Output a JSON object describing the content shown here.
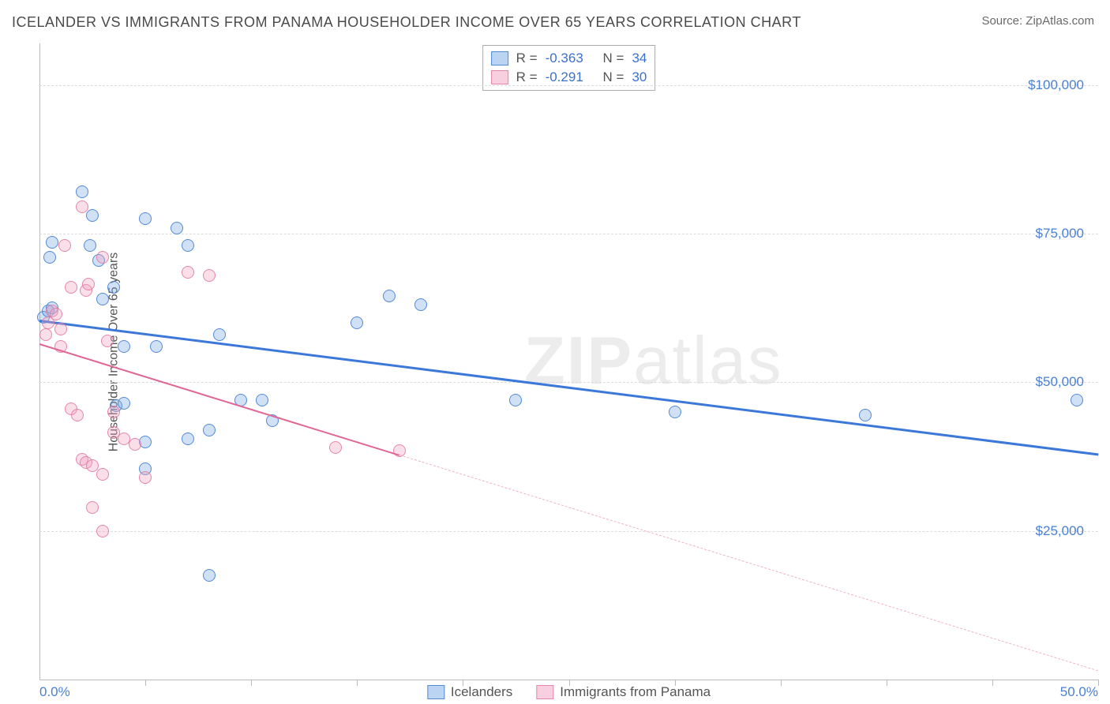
{
  "title": "ICELANDER VS IMMIGRANTS FROM PANAMA HOUSEHOLDER INCOME OVER 65 YEARS CORRELATION CHART",
  "source": "Source: ZipAtlas.com",
  "watermark": {
    "prefix": "ZIP",
    "suffix": "atlas"
  },
  "y_axis_title": "Householder Income Over 65 years",
  "chart": {
    "type": "scatter",
    "xlim": [
      0,
      50
    ],
    "ylim": [
      0,
      107000
    ],
    "x_min_label": "0.0%",
    "x_max_label": "50.0%",
    "x_tick_step": 5,
    "y_gridlines": [
      {
        "value": 25000,
        "label": "$25,000"
      },
      {
        "value": 50000,
        "label": "$50,000"
      },
      {
        "value": 75000,
        "label": "$75,000"
      },
      {
        "value": 100000,
        "label": "$100,000"
      }
    ],
    "background_color": "#ffffff",
    "grid_color": "#dcdcdc",
    "axis_color": "#bbbbbb",
    "text_color": "#555555",
    "value_color": "#4a7fd6",
    "marker_radius": 8,
    "series": [
      {
        "key": "icelanders",
        "name": "Icelanders",
        "color_fill": "rgba(120,170,230,0.35)",
        "color_stroke": "rgba(70,130,210,0.9)",
        "trend_color": "#3b78d8",
        "r_value": "-0.363",
        "n_value": "34",
        "trend": {
          "x1": 0,
          "y1": 60500,
          "x2": 50,
          "y2": 38000,
          "solid_until_x": 50
        },
        "points": [
          [
            0.2,
            61000
          ],
          [
            0.4,
            62000
          ],
          [
            0.6,
            62500
          ],
          [
            0.5,
            71000
          ],
          [
            0.6,
            73500
          ],
          [
            2.0,
            82000
          ],
          [
            2.4,
            73000
          ],
          [
            2.5,
            78000
          ],
          [
            3.0,
            64000
          ],
          [
            3.5,
            66000
          ],
          [
            3.6,
            46000
          ],
          [
            4.0,
            56000
          ],
          [
            5.0,
            77500
          ],
          [
            6.5,
            76000
          ],
          [
            7.0,
            73000
          ],
          [
            5.5,
            56000
          ],
          [
            5.0,
            40000
          ],
          [
            5.0,
            35500
          ],
          [
            7.0,
            40500
          ],
          [
            8.0,
            42000
          ],
          [
            8.5,
            58000
          ],
          [
            9.5,
            47000
          ],
          [
            10.5,
            47000
          ],
          [
            11.0,
            43500
          ],
          [
            8.0,
            17500
          ],
          [
            15.0,
            60000
          ],
          [
            16.5,
            64500
          ],
          [
            18.0,
            63000
          ],
          [
            22.5,
            47000
          ],
          [
            30.0,
            45000
          ],
          [
            39.0,
            44500
          ],
          [
            49.0,
            47000
          ],
          [
            2.8,
            70500
          ],
          [
            4.0,
            46500
          ]
        ]
      },
      {
        "key": "panama",
        "name": "Immigrants from Panama",
        "color_fill": "rgba(240,160,190,0.35)",
        "color_stroke": "rgba(225,120,160,0.85)",
        "trend_color": "#e06694",
        "trend_dash_color": "#f0b3c8",
        "r_value": "-0.291",
        "n_value": "30",
        "trend": {
          "x1": 0,
          "y1": 56500,
          "x2": 50,
          "y2": 1500,
          "solid_until_x": 17
        },
        "points": [
          [
            0.3,
            58000
          ],
          [
            0.4,
            60000
          ],
          [
            0.6,
            62000
          ],
          [
            0.8,
            61500
          ],
          [
            1.0,
            59000
          ],
          [
            1.0,
            56000
          ],
          [
            1.2,
            73000
          ],
          [
            1.5,
            66000
          ],
          [
            2.0,
            79500
          ],
          [
            2.2,
            65500
          ],
          [
            2.3,
            66500
          ],
          [
            3.0,
            71000
          ],
          [
            3.2,
            57000
          ],
          [
            3.5,
            45000
          ],
          [
            4.0,
            40500
          ],
          [
            1.5,
            45500
          ],
          [
            1.8,
            44500
          ],
          [
            2.0,
            37000
          ],
          [
            2.2,
            36500
          ],
          [
            2.5,
            36000
          ],
          [
            3.0,
            34500
          ],
          [
            3.5,
            41500
          ],
          [
            4.5,
            39500
          ],
          [
            5.0,
            34000
          ],
          [
            2.5,
            29000
          ],
          [
            3.0,
            25000
          ],
          [
            7.0,
            68500
          ],
          [
            8.0,
            68000
          ],
          [
            14.0,
            39000
          ],
          [
            17.0,
            38500
          ]
        ]
      }
    ]
  },
  "stat_legend": {
    "r_label": "R =",
    "n_label": "N ="
  },
  "fonts": {
    "title_size": 18,
    "label_size": 17,
    "axis_title_size": 16
  }
}
